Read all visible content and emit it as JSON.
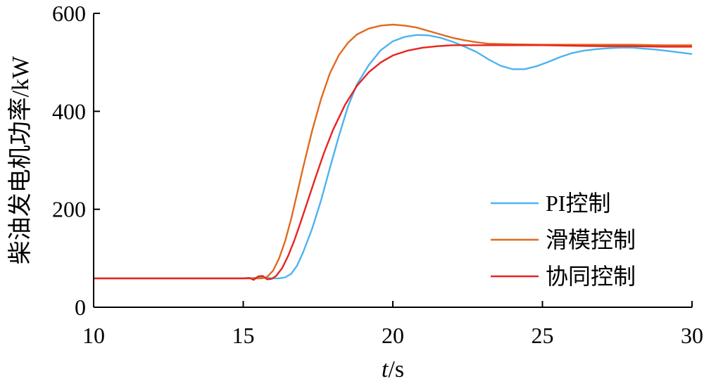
{
  "chart_data": {
    "type": "line",
    "xlabel_italic": "t",
    "xlabel_unit": "/s",
    "ylabel": "柴油发电机功率/kW",
    "xlim": [
      10,
      30
    ],
    "ylim": [
      0,
      600
    ],
    "xticks": [
      "10",
      "15",
      "20",
      "25",
      "30"
    ],
    "yticks": [
      "0",
      "200",
      "400",
      "600"
    ],
    "grid": false,
    "legend_position": "bottom-right",
    "series": [
      {
        "name": "PI控制",
        "color": "#4db3ef",
        "points": [
          [
            10,
            59
          ],
          [
            15.2,
            59
          ],
          [
            15.4,
            60
          ],
          [
            15.6,
            61
          ],
          [
            15.8,
            60
          ],
          [
            16.0,
            59
          ],
          [
            16.2,
            59
          ],
          [
            16.4,
            61
          ],
          [
            16.6,
            68
          ],
          [
            16.8,
            85
          ],
          [
            17.0,
            112
          ],
          [
            17.3,
            160
          ],
          [
            17.6,
            218
          ],
          [
            17.9,
            285
          ],
          [
            18.2,
            350
          ],
          [
            18.5,
            410
          ],
          [
            18.8,
            455
          ],
          [
            19.2,
            495
          ],
          [
            19.6,
            525
          ],
          [
            20.0,
            543
          ],
          [
            20.4,
            552
          ],
          [
            20.8,
            556
          ],
          [
            21.2,
            555
          ],
          [
            21.6,
            550
          ],
          [
            22.0,
            542
          ],
          [
            22.4,
            532
          ],
          [
            22.8,
            521
          ],
          [
            23.2,
            506
          ],
          [
            23.6,
            493
          ],
          [
            24.0,
            486
          ],
          [
            24.4,
            486
          ],
          [
            24.8,
            492
          ],
          [
            25.2,
            501
          ],
          [
            25.6,
            511
          ],
          [
            26.0,
            519
          ],
          [
            26.4,
            524
          ],
          [
            26.8,
            527
          ],
          [
            27.2,
            529
          ],
          [
            27.6,
            530
          ],
          [
            28.0,
            530
          ],
          [
            28.4,
            528
          ],
          [
            28.8,
            526
          ],
          [
            29.2,
            523
          ],
          [
            29.6,
            520
          ],
          [
            30.0,
            517
          ]
        ]
      },
      {
        "name": "滑模控制",
        "color": "#e06a1e",
        "points": [
          [
            10,
            59
          ],
          [
            15.6,
            59
          ],
          [
            15.7,
            60
          ],
          [
            15.8,
            62
          ],
          [
            16.0,
            75
          ],
          [
            16.2,
            100
          ],
          [
            16.4,
            135
          ],
          [
            16.6,
            180
          ],
          [
            16.8,
            232
          ],
          [
            17.0,
            285
          ],
          [
            17.3,
            360
          ],
          [
            17.6,
            425
          ],
          [
            17.9,
            478
          ],
          [
            18.2,
            515
          ],
          [
            18.5,
            540
          ],
          [
            18.8,
            557
          ],
          [
            19.2,
            569
          ],
          [
            19.6,
            575
          ],
          [
            20.0,
            577
          ],
          [
            20.4,
            575
          ],
          [
            20.8,
            571
          ],
          [
            21.2,
            564
          ],
          [
            21.6,
            557
          ],
          [
            22.0,
            550
          ],
          [
            22.4,
            545
          ],
          [
            22.8,
            541
          ],
          [
            23.2,
            538
          ],
          [
            24.0,
            537
          ],
          [
            25.0,
            536
          ],
          [
            26.0,
            536
          ],
          [
            27.0,
            536
          ],
          [
            28.0,
            536
          ],
          [
            29.0,
            535
          ],
          [
            30.0,
            535
          ]
        ]
      },
      {
        "name": "协同控制",
        "color": "#e8241e",
        "points": [
          [
            10,
            59
          ],
          [
            15.0,
            59
          ],
          [
            15.2,
            60
          ],
          [
            15.35,
            56
          ],
          [
            15.5,
            63
          ],
          [
            15.65,
            64
          ],
          [
            15.8,
            57
          ],
          [
            15.95,
            58
          ],
          [
            16.1,
            64
          ],
          [
            16.3,
            80
          ],
          [
            16.5,
            105
          ],
          [
            16.7,
            135
          ],
          [
            16.9,
            170
          ],
          [
            17.1,
            207
          ],
          [
            17.4,
            262
          ],
          [
            17.7,
            315
          ],
          [
            18.0,
            362
          ],
          [
            18.4,
            413
          ],
          [
            18.8,
            452
          ],
          [
            19.2,
            480
          ],
          [
            19.6,
            500
          ],
          [
            20.0,
            514
          ],
          [
            20.5,
            524
          ],
          [
            21.0,
            530
          ],
          [
            21.5,
            533
          ],
          [
            22.0,
            535
          ],
          [
            23.0,
            535
          ],
          [
            24.0,
            535
          ],
          [
            25.0,
            535
          ],
          [
            26.0,
            534
          ],
          [
            27.0,
            533
          ],
          [
            28.0,
            533
          ],
          [
            29.0,
            532
          ],
          [
            30.0,
            532
          ]
        ]
      }
    ]
  }
}
